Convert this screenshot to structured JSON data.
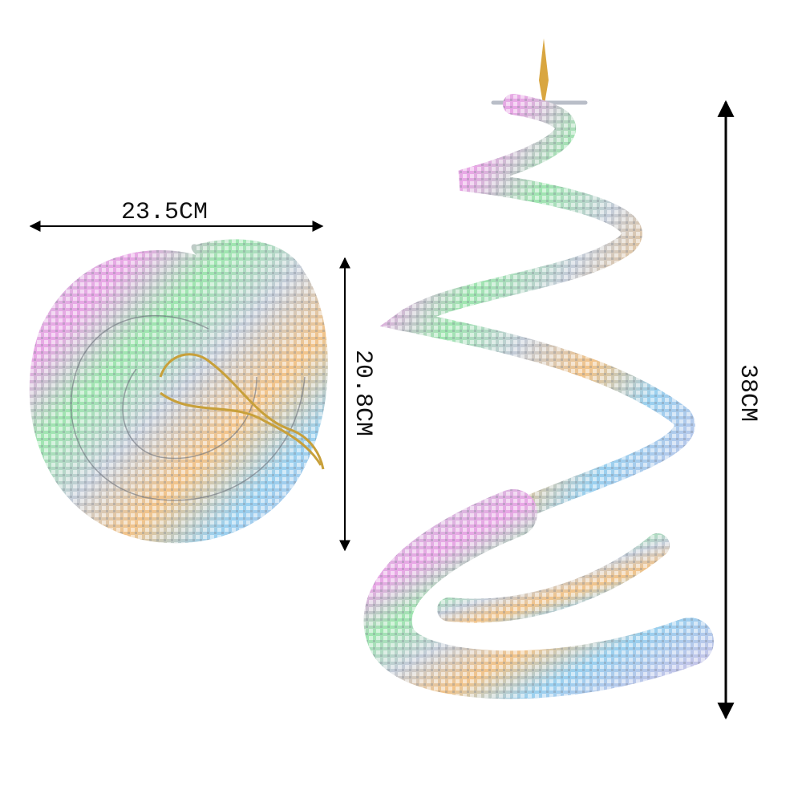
{
  "labels": {
    "width": "23.5CM",
    "height": "20.8CM",
    "length": "38CM"
  }
}
